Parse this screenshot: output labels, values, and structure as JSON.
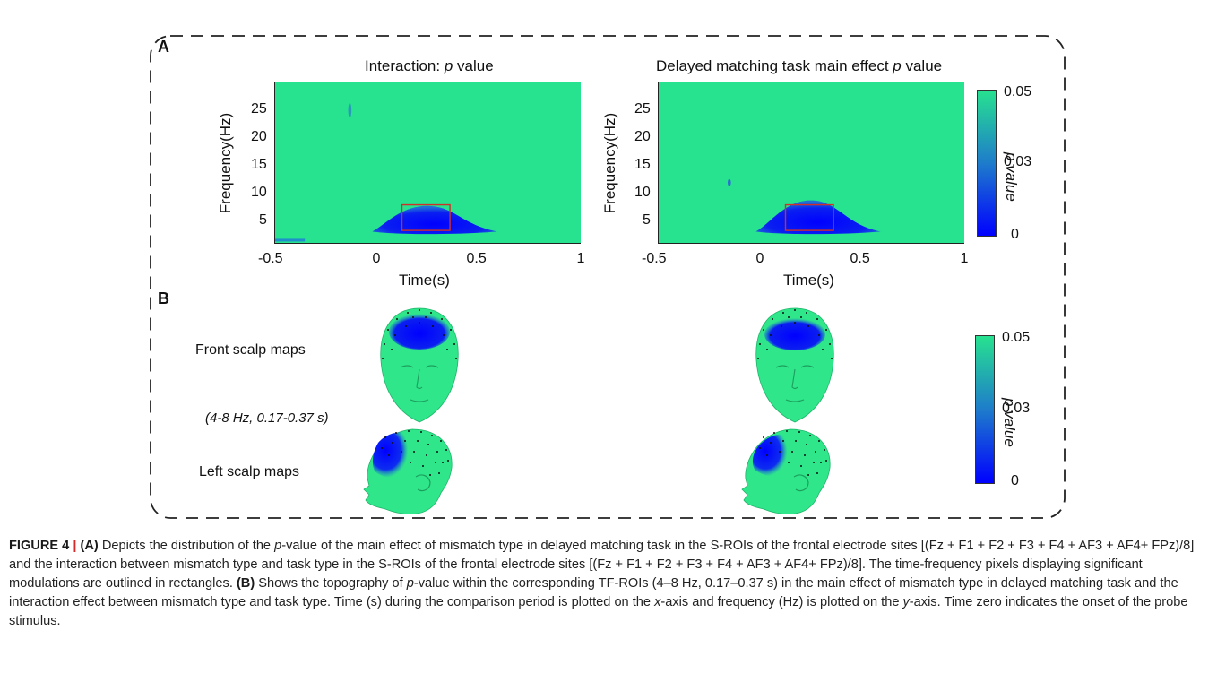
{
  "panels": {
    "a_label": "A",
    "b_label": "B"
  },
  "plots": [
    {
      "title_prefix": "Interaction: ",
      "title_italic": "p",
      "title_suffix": " value",
      "ylabel": "Frequency(Hz)",
      "xlabel": "Time(s)"
    },
    {
      "title_prefix": "Delayed matching task main effect ",
      "title_italic": "p",
      "title_suffix": " value",
      "ylabel": "Frequency(Hz)",
      "xlabel": "Time(s)"
    }
  ],
  "chart_data": {
    "type": "heatmap",
    "xlim": [
      -0.5,
      1
    ],
    "ylim": [
      1,
      30
    ],
    "x_ticks": [
      "-0.5",
      "0",
      "0.5",
      "1"
    ],
    "y_ticks": [
      "25",
      "20",
      "15",
      "10",
      "5"
    ],
    "roi_time": [
      0.17,
      0.37
    ],
    "roi_freq": [
      4,
      8
    ],
    "colorbar": {
      "label": "p value",
      "ticks": [
        "0.05",
        "0.03",
        "0"
      ],
      "range": [
        0,
        0.05
      ],
      "colors": [
        "#0000ff",
        "#27e28f"
      ]
    }
  },
  "scalp": {
    "front_label": "Front scalp maps",
    "left_label": "Left scalp maps",
    "roi_note": "(4-8 Hz, 0.17-0.37 s)",
    "colorbar_label": "p value",
    "colorbar_ticks": [
      "0.05",
      "0.03",
      "0"
    ]
  },
  "caption": {
    "figure_label": "FIGURE 4",
    "separator": "|",
    "a_tag": "(A)",
    "a_text_1": " Depicts the distribution of the ",
    "p1": "p",
    "a_text_2": "-value of the main effect of mismatch type in delayed matching task in the S-ROIs of the frontal electrode sites [(Fz + F1 + F2 + F3 + F4 + AF3 + AF4+ FPz)/8] and the interaction between mismatch type and task type in the S-ROIs of the frontal electrode sites [(Fz + F1 + F2 + F3 + F4 + AF3 + AF4+ FPz)/8]. The time-frequency pixels displaying significant modulations are outlined in rectangles. ",
    "b_tag": "(B)",
    "b_text_1": " Shows the topography of ",
    "p2": "p",
    "b_text_2": "-value within the corresponding TF-ROIs (4–8 Hz, 0.17–0.37 s) in the main effect of mismatch type in delayed matching task and the interaction effect between mismatch type and task type. Time (s) during the comparison period is plotted on the ",
    "x_word": "x",
    "b_text_3": "-axis and frequency (Hz) is plotted on the ",
    "y_word": "y",
    "b_text_4": "-axis. Time zero indicates the onset of the probe stimulus."
  }
}
